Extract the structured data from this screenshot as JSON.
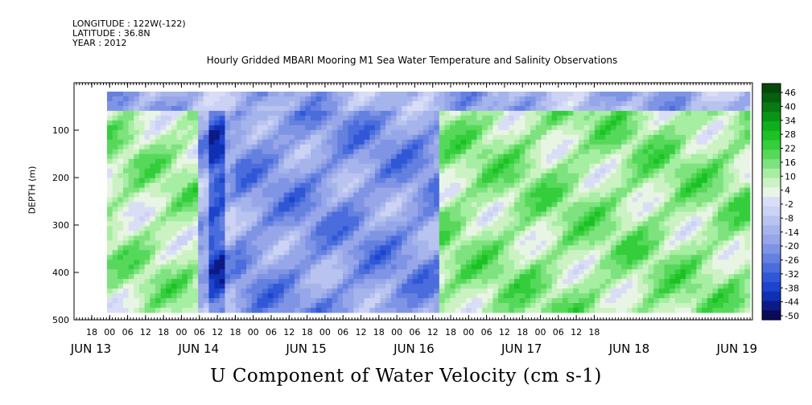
{
  "meta": {
    "longitude": "LONGITUDE : 122W(-122)",
    "latitude": "LATITUDE : 36.8N",
    "year": "YEAR : 2012"
  },
  "chart_data": {
    "type": "heatmap",
    "title": "Hourly Gridded MBARI Mooring M1 Sea Water Temperature and Salinity Observations",
    "variable_label": "U Component of Water Velocity (cm s-1)",
    "ylabel": "DEPTH (m)",
    "ylim": [
      500,
      0
    ],
    "y_ticks": [
      100,
      200,
      300,
      400,
      500
    ],
    "x_hour_ticks": [
      "18",
      "00",
      "06",
      "12",
      "18",
      "00",
      "06",
      "12",
      "18",
      "00",
      "06",
      "12",
      "18",
      "00",
      "06",
      "12",
      "18",
      "00",
      "06",
      "12",
      "18",
      "00",
      "06",
      "12",
      "18",
      "00",
      "06",
      "12",
      "18"
    ],
    "x_day_labels": [
      "JUN 13",
      "JUN 14",
      "JUN 15",
      "JUN 16",
      "JUN 17",
      "JUN 18",
      "JUN 19"
    ],
    "colorbar": {
      "levels": [
        46,
        40,
        34,
        28,
        22,
        16,
        10,
        4,
        -2,
        -8,
        -14,
        -20,
        -26,
        -32,
        -38,
        -44,
        -50
      ],
      "range": [
        -50,
        52
      ],
      "colors": [
        "#0a0a5a",
        "#0c1a86",
        "#1030b4",
        "#1d44cc",
        "#3058d6",
        "#4a6cdc",
        "#6581e0",
        "#7f94e4",
        "#96a6e8",
        "#a6b4ec",
        "#b9c3f0",
        "#cbd2f4",
        "#d9def6",
        "#e9f5e4",
        "#ccf2c4",
        "#a6eea2",
        "#7ee27e",
        "#56d95a",
        "#34ce3c",
        "#1cc224",
        "#0fae1c",
        "#0a9417",
        "#087a12",
        "#06600e",
        "#04480a"
      ]
    },
    "data_extent": {
      "day_start": "JUN 13 12",
      "day_end": "JUN 20 00",
      "depth_top": 12,
      "depth_bottom": 488
    },
    "regions": [
      {
        "description": "near-surface band mostly positive (green)",
        "t": [
          0.0,
          1.0
        ],
        "depth": [
          12,
          50
        ],
        "value": 14
      },
      {
        "description": "JUN 13 – early JUN 14 mostly negative",
        "t": [
          0.0,
          0.14
        ],
        "depth": [
          50,
          488
        ],
        "value": -10
      },
      {
        "description": "late JUN 14 strong positive column",
        "t": [
          0.15,
          0.2
        ],
        "depth": [
          100,
          488
        ],
        "value": 30
      },
      {
        "description": "JUN 15 – JUN 16 broad positive",
        "t": [
          0.2,
          0.52
        ],
        "depth": [
          150,
          420
        ],
        "value": 20
      },
      {
        "description": "JUN 17 – JUN 19 mostly negative",
        "t": [
          0.52,
          1.0
        ],
        "depth": [
          50,
          488
        ],
        "value": -12
      }
    ]
  }
}
